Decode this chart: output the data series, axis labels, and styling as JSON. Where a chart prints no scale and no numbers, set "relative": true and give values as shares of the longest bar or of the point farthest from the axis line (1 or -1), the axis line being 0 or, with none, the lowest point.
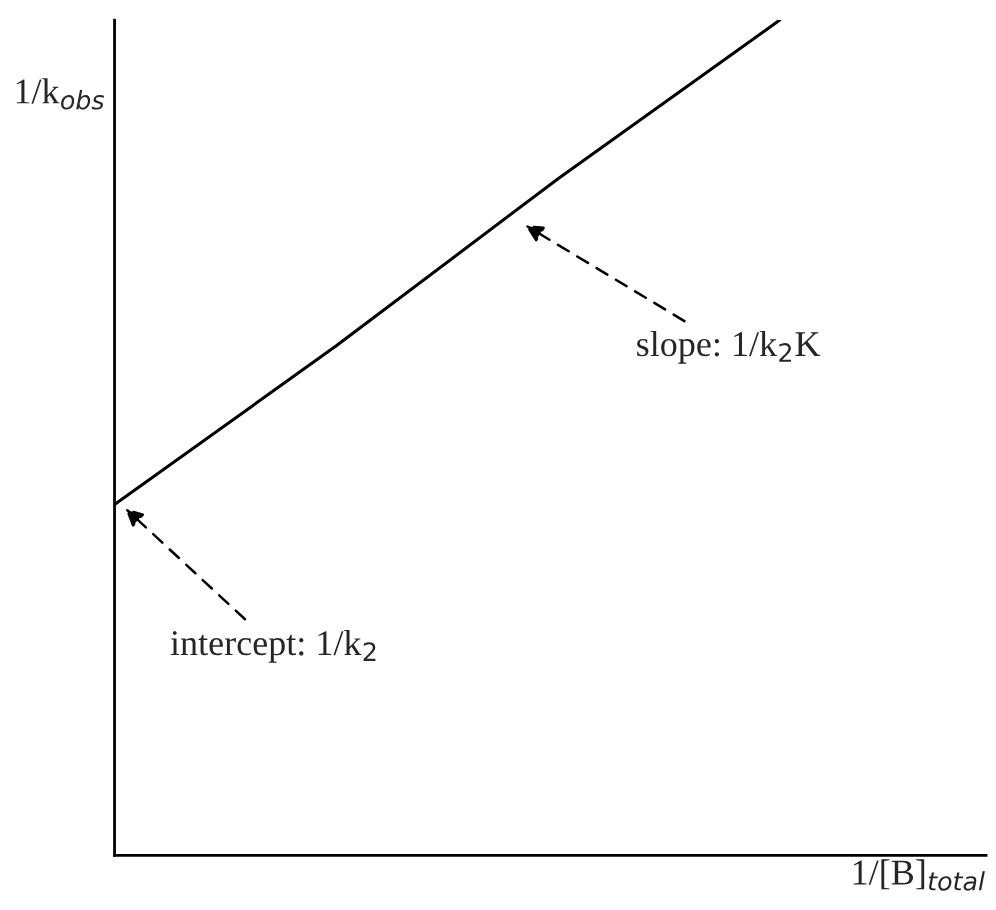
{
  "chart_data": {
    "type": "line",
    "relative": true,
    "categories": [
      null,
      null,
      null,
      null
    ],
    "series": [
      {
        "color": "#000000",
        "values": [
          0.42,
          0.61,
          0.81,
          1.0
        ]
      }
    ],
    "xlabel": "1/[B]$_{total}$",
    "ylabel": "1/k$_{obs}$",
    "annotations": [
      "intercept: 1/k$_{2}$",
      "slope: 1/k$_{2}$K"
    ],
    "grid": false,
    "legend": false,
    "marker": "none",
    "line_style": "solid"
  }
}
